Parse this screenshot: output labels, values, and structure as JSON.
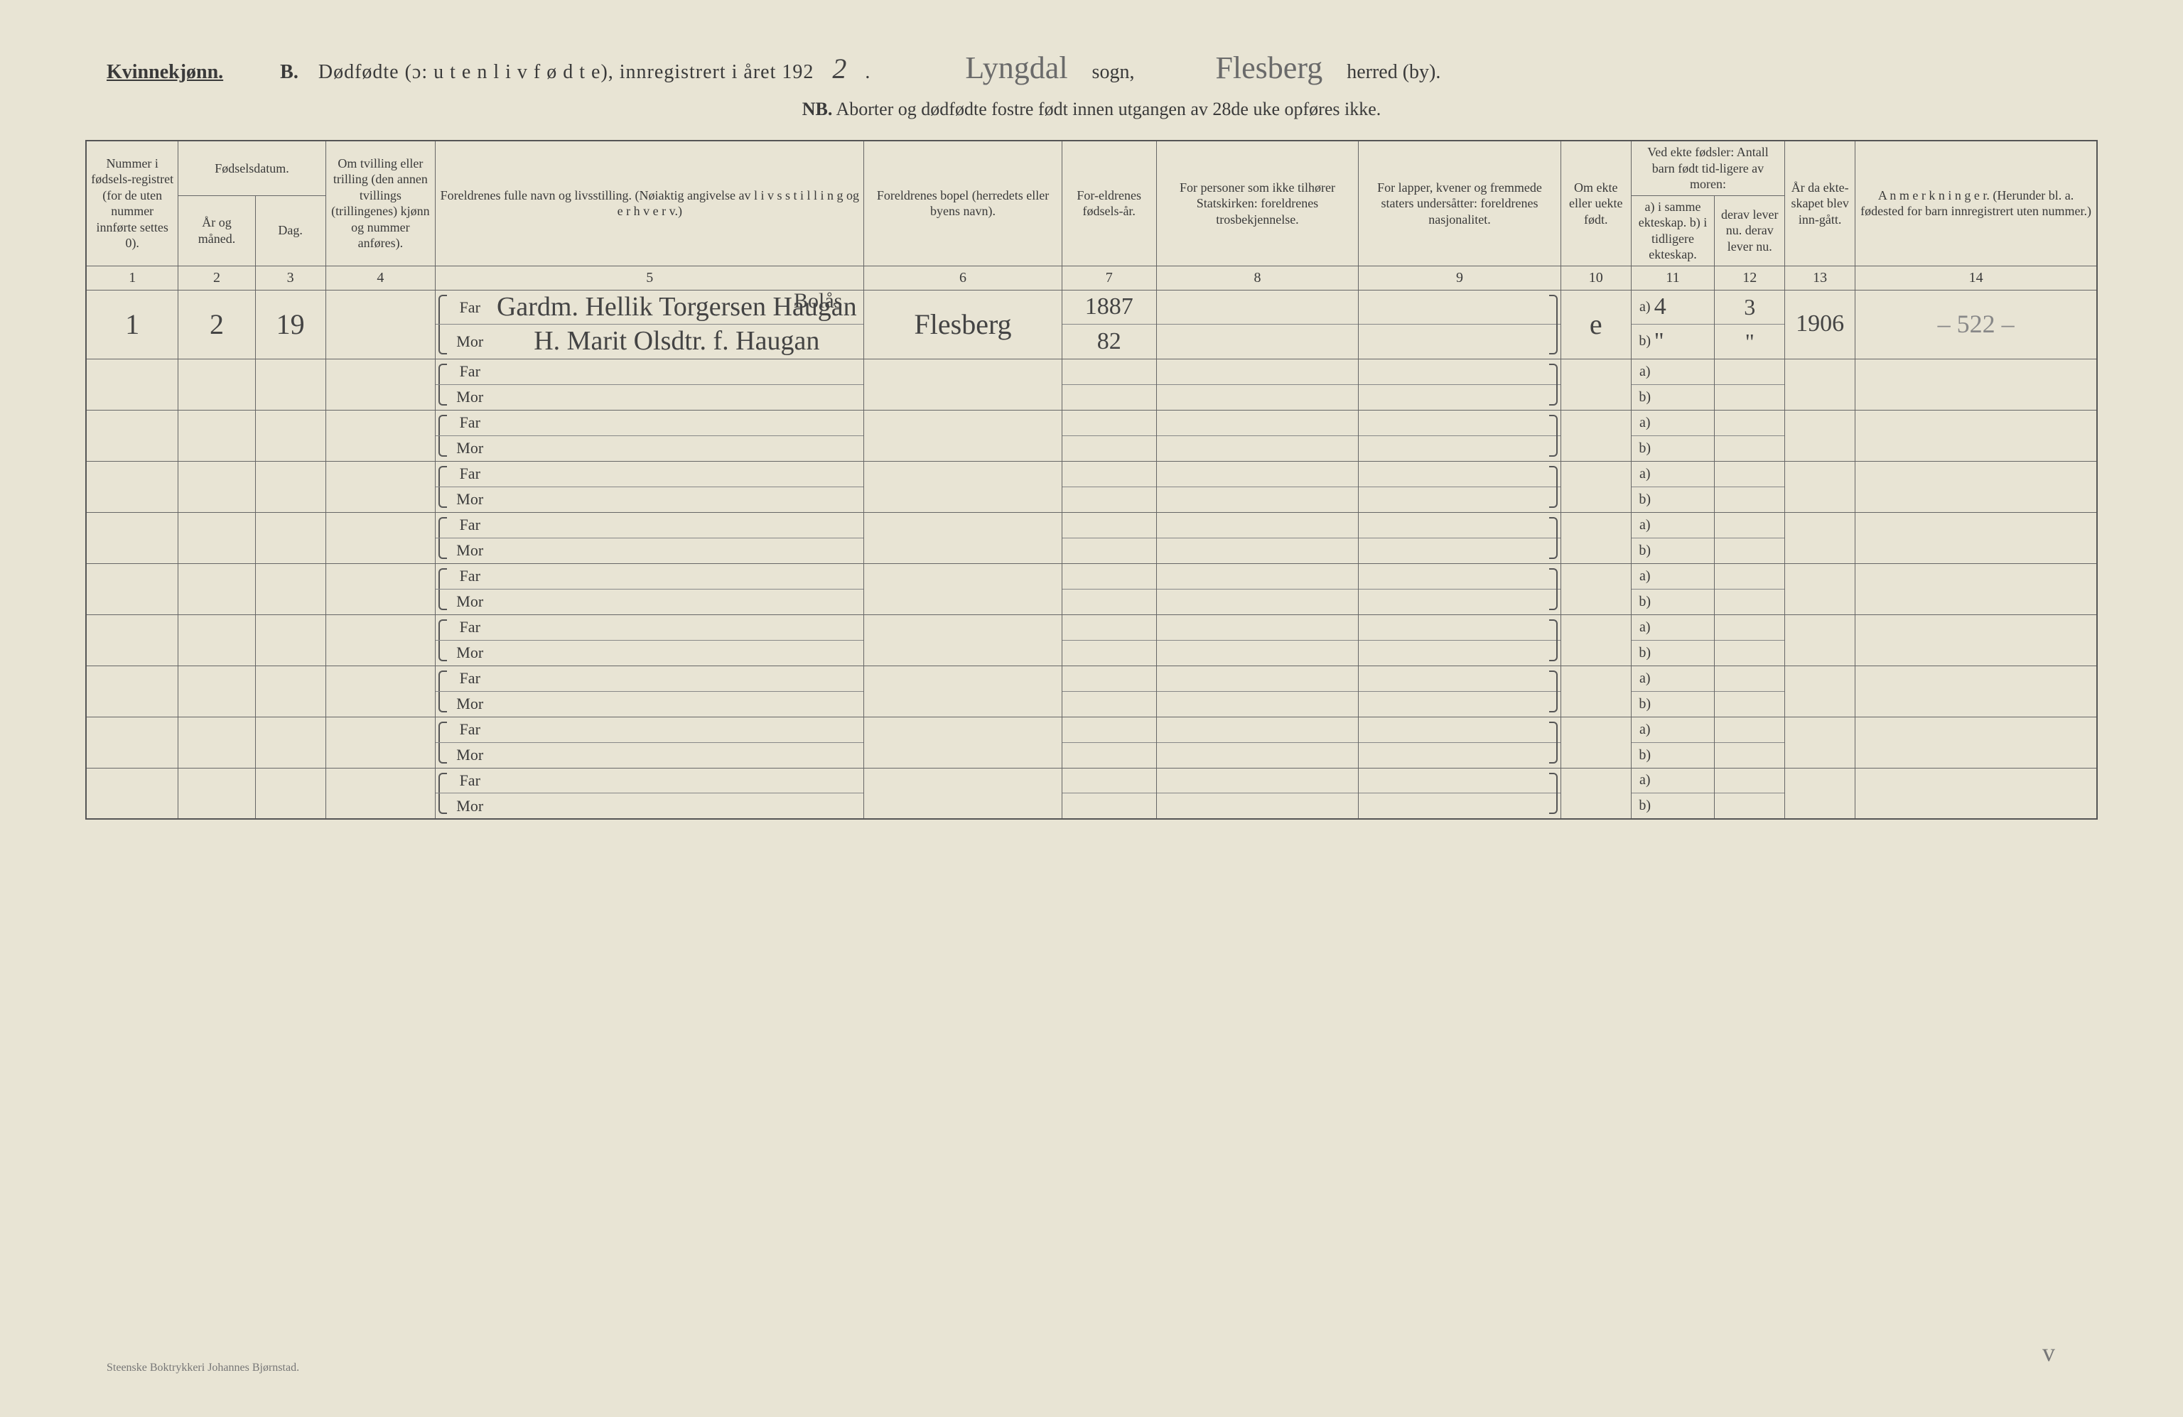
{
  "header": {
    "gender": "Kvinnekjønn.",
    "section_letter": "B.",
    "title_main": "Dødfødte (ɔ: u t e n  l i v  f ø d t e), innregistrert i året 192",
    "year_suffix": "2",
    "period": ".",
    "sogn_value": "Lyngdal",
    "sogn_label": "sogn,",
    "herred_value": "Flesberg",
    "herred_label": "herred (by).",
    "nb_prefix": "NB.",
    "nb_text": "Aborter og dødfødte fostre født innen utgangen av 28de uke opføres ikke."
  },
  "columns": {
    "c1": "Nummer i fødsels-registret (for de uten nummer innførte settes 0).",
    "c2_group": "Fødselsdatum.",
    "c2": "År og måned.",
    "c3": "Dag.",
    "c4": "Om tvilling eller trilling (den annen tvillings (trillingenes) kjønn og nummer anføres).",
    "c5": "Foreldrenes fulle navn og livsstilling. (Nøiaktig angivelse av l i v s s t i l l i n g og e r h v e r v.)",
    "c6": "Foreldrenes bopel (herredets eller byens navn).",
    "c7": "For-eldrenes fødsels-år.",
    "c8": "For personer som ikke tilhører Statskirken: foreldrenes trosbekjennelse.",
    "c9": "For lapper, kvener og fremmede staters undersåtter: foreldrenes nasjonalitet.",
    "c10": "Om ekte eller uekte født.",
    "c11_group": "Ved ekte fødsler: Antall barn født tid-ligere av moren:",
    "c11": "a) i samme ekteskap. b) i tidligere ekteskap.",
    "c12": "derav lever nu. derav lever nu.",
    "c13": "År da ekte-skapet blev inn-gått.",
    "c14": "A n m e r k n i n g e r. (Herunder bl. a. fødested for barn innregistrert uten nummer.)"
  },
  "colnums": [
    "1",
    "2",
    "3",
    "4",
    "5",
    "6",
    "7",
    "8",
    "9",
    "10",
    "11",
    "12",
    "13",
    "14"
  ],
  "fm_labels": {
    "far": "Far",
    "mor": "Mor"
  },
  "ab_labels": {
    "a": "a)",
    "b": "b)"
  },
  "rows": [
    {
      "num": "1",
      "ar_maned": "2",
      "dag": "19",
      "tvilling": "",
      "far_extra": "Bolås",
      "far": "Gardm. Hellik Torgersen Haugan",
      "mor": "H. Marit Olsdtr. f. Haugan",
      "bopel": "Flesberg",
      "far_aar": "1887",
      "mor_aar": "82",
      "col8": "",
      "col9": "",
      "ekte": "e",
      "a_samme": "4",
      "a_lever": "3",
      "b_tidl": "\"",
      "b_lever": "\"",
      "aar_ekteskap": "1906",
      "anm": "– 522 –"
    },
    {},
    {},
    {},
    {},
    {},
    {},
    {},
    {},
    {}
  ],
  "footer": "Steenske Boktrykkeri Johannes Bjørnstad.",
  "corner_mark": "v"
}
